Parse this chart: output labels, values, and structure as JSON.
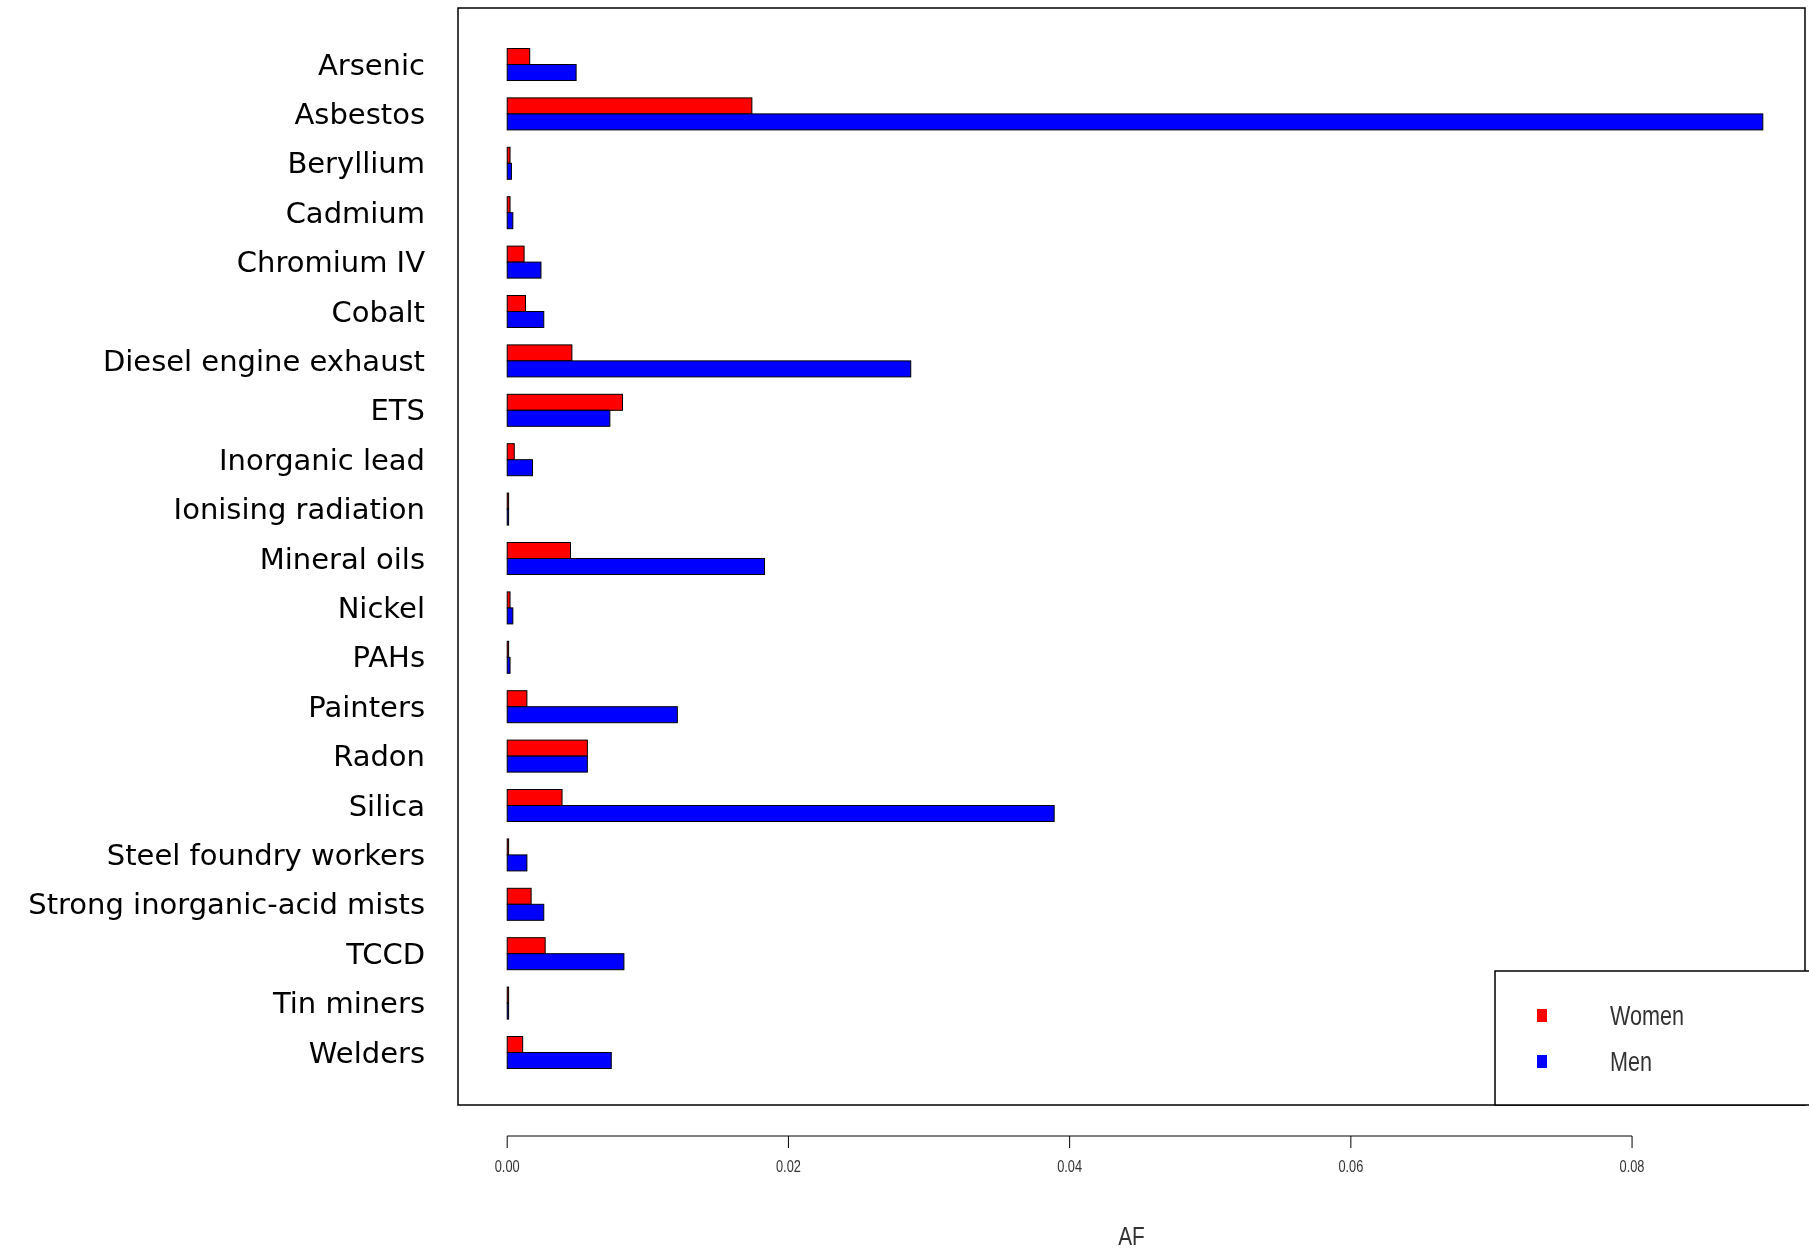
{
  "chart_data": {
    "type": "bar",
    "orientation": "horizontal",
    "xlabel": "AF",
    "categories": [
      "Arsenic",
      "Asbestos",
      "Beryllium",
      "Cadmium",
      "Chromium IV",
      "Cobalt",
      "Diesel engine exhaust",
      "ETS",
      "Inorganic lead",
      "Ionising radiation",
      "Mineral oils",
      "Nickel",
      "PAHs",
      "Painters",
      "Radon",
      "Silica",
      "Steel foundry workers",
      "Strong inorganic-acid mists",
      "TCCD",
      "Tin miners",
      "Welders"
    ],
    "series": [
      {
        "name": "Women",
        "color": "#ff0000",
        "values": [
          0.0016,
          0.0174,
          0.0002,
          0.0002,
          0.0012,
          0.0013,
          0.0046,
          0.0082,
          0.0005,
          0.0001,
          0.0045,
          0.0002,
          0.0001,
          0.0014,
          0.0057,
          0.0039,
          0.0001,
          0.0017,
          0.0027,
          0.0001,
          0.0011
        ]
      },
      {
        "name": "Men",
        "color": "#0000ff",
        "values": [
          0.0049,
          0.0893,
          0.0003,
          0.0004,
          0.0024,
          0.0026,
          0.0287,
          0.0073,
          0.0018,
          0.0001,
          0.0183,
          0.0004,
          0.0002,
          0.0121,
          0.0057,
          0.0389,
          0.0014,
          0.0026,
          0.0083,
          0.0001,
          0.0074
        ]
      }
    ],
    "xlim": [
      -0.0035,
      0.0923
    ],
    "xticks": [
      {
        "value": 0,
        "label": "0.00"
      },
      {
        "value": 0.02,
        "label": "0.02"
      },
      {
        "value": 0.04,
        "label": "0.04"
      },
      {
        "value": 0.06,
        "label": "0.06"
      },
      {
        "value": 0.08,
        "label": "0.08"
      }
    ],
    "legend": "bottom right"
  }
}
